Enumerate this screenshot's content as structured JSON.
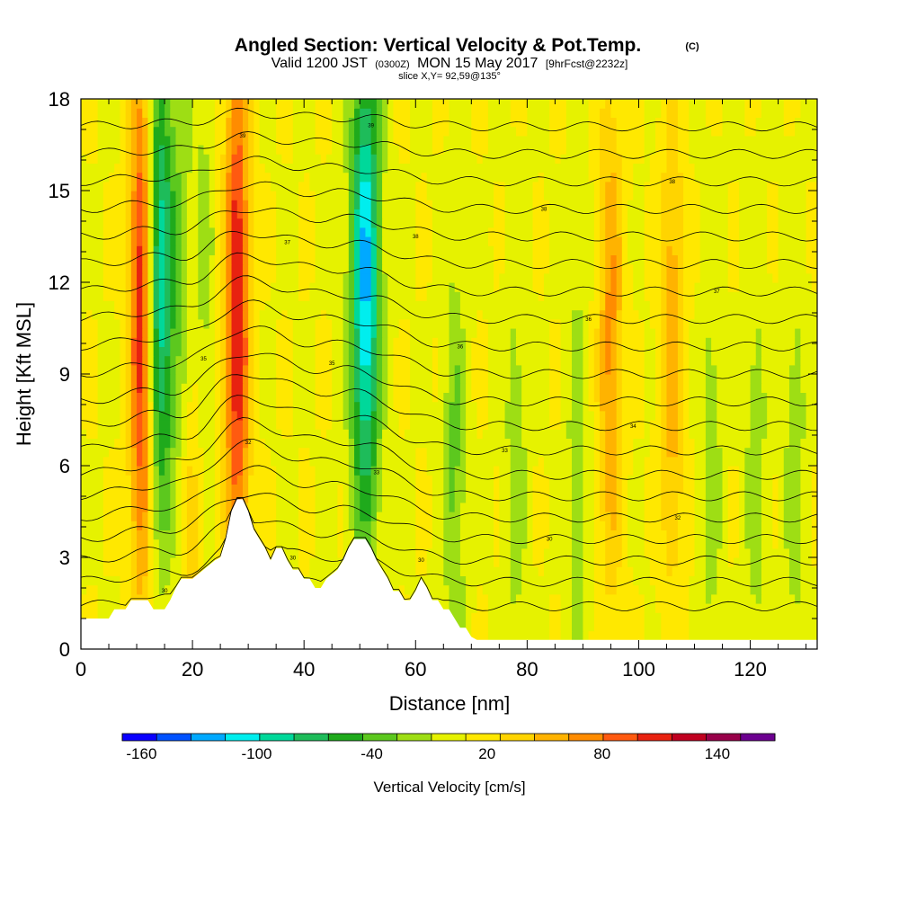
{
  "header": {
    "title": "Angled Section: Vertical Velocity & Pot.Temp.",
    "copyright": "(C)",
    "valid_prefix": "Valid 1200 JST",
    "valid_utc": "(0300Z)",
    "valid_date": "MON 15 May 2017",
    "forecast": "[9hrFcst@2232z]",
    "slice": "slice X,Y= 92,59@135°"
  },
  "chart_data": {
    "type": "heatmap",
    "title": "Angled Section: Vertical Velocity & Pot.Temp.",
    "xlabel": "Distance [nm]",
    "ylabel": "Height [Kft MSL]",
    "xlim": [
      0,
      132
    ],
    "ylim": [
      0,
      18
    ],
    "x_ticks": [
      0,
      20,
      40,
      60,
      80,
      100,
      120
    ],
    "y_ticks": [
      0,
      3,
      6,
      9,
      12,
      15,
      18
    ],
    "grid": false,
    "colorbar": {
      "label": "Vertical Velocity [cm/s]",
      "range": [
        -170,
        170
      ],
      "tick_labels": [
        -160,
        -100,
        -40,
        20,
        80,
        140
      ],
      "colors": [
        "#0a00ff",
        "#0052ff",
        "#00a9ff",
        "#00eeee",
        "#00d89a",
        "#1ebc5a",
        "#1faa1c",
        "#5cc81e",
        "#9ede14",
        "#e6f200",
        "#ffe800",
        "#ffd400",
        "#ffb300",
        "#ff8c00",
        "#ff5a10",
        "#e82210",
        "#c00020",
        "#98004a",
        "#6c0090"
      ]
    },
    "terrain_kft": [
      [
        0,
        1.0
      ],
      [
        5,
        1.0
      ],
      [
        6,
        1.3
      ],
      [
        8,
        1.3
      ],
      [
        9,
        1.6
      ],
      [
        11,
        1.6
      ],
      [
        12,
        1.6
      ],
      [
        13,
        1.3
      ],
      [
        15,
        1.3
      ],
      [
        16,
        1.6
      ],
      [
        17,
        2.0
      ],
      [
        18,
        2.3
      ],
      [
        20,
        2.3
      ],
      [
        22,
        2.6
      ],
      [
        24,
        2.9
      ],
      [
        25,
        3.0
      ],
      [
        26,
        3.6
      ],
      [
        27,
        4.5
      ],
      [
        28,
        4.9
      ],
      [
        29,
        4.9
      ],
      [
        30,
        4.5
      ],
      [
        31,
        3.9
      ],
      [
        32,
        3.6
      ],
      [
        33,
        3.3
      ],
      [
        34,
        2.9
      ],
      [
        35,
        3.3
      ],
      [
        36,
        3.3
      ],
      [
        37,
        2.9
      ],
      [
        38,
        2.6
      ],
      [
        39,
        2.6
      ],
      [
        40,
        2.3
      ],
      [
        41,
        2.3
      ],
      [
        42,
        2.0
      ],
      [
        43,
        2.0
      ],
      [
        44,
        2.3
      ],
      [
        46,
        2.6
      ],
      [
        47,
        2.9
      ],
      [
        48,
        3.3
      ],
      [
        49,
        3.6
      ],
      [
        51,
        3.6
      ],
      [
        52,
        3.3
      ],
      [
        53,
        2.9
      ],
      [
        54,
        2.6
      ],
      [
        55,
        2.3
      ],
      [
        56,
        1.9
      ],
      [
        57,
        1.9
      ],
      [
        58,
        1.6
      ],
      [
        59,
        1.6
      ],
      [
        60,
        1.9
      ],
      [
        61,
        2.3
      ],
      [
        62,
        2.0
      ],
      [
        63,
        1.6
      ],
      [
        64,
        1.6
      ],
      [
        65,
        1.3
      ],
      [
        66,
        1.3
      ],
      [
        67,
        1.0
      ],
      [
        68,
        0.7
      ],
      [
        69,
        0.7
      ],
      [
        70,
        0.4
      ],
      [
        71,
        0.3
      ],
      [
        132,
        0.3
      ]
    ],
    "updraft_bands": [
      {
        "x": 11,
        "value": 120
      },
      {
        "x": 20,
        "value": 150
      },
      {
        "x": 28,
        "value": 110
      },
      {
        "x": 95,
        "value": 60
      },
      {
        "x": 106,
        "value": 50
      }
    ],
    "downdraft_bands": [
      {
        "x": 14,
        "value": -110
      },
      {
        "x": 20,
        "value": -160
      },
      {
        "x": 51,
        "value": -130
      },
      {
        "x": 67,
        "value": -40
      },
      {
        "x": 78,
        "value": -30
      },
      {
        "x": 89,
        "value": -30
      },
      {
        "x": 113,
        "value": -30
      },
      {
        "x": 121,
        "value": -30
      },
      {
        "x": 128,
        "value": -30
      }
    ],
    "isentropes": [
      {
        "label": "30",
        "base": 1.4,
        "amp": 1.0
      },
      {
        "label": "30",
        "base": 2.2,
        "amp": 1.1
      },
      {
        "label": "30",
        "base": 2.9,
        "amp": 1.2
      },
      {
        "label": "30",
        "base": 3.6,
        "amp": 1.3
      },
      {
        "label": "32",
        "base": 4.3,
        "amp": 1.4
      },
      {
        "label": "32",
        "base": 5.0,
        "amp": 1.5
      },
      {
        "label": "33",
        "base": 5.7,
        "amp": 1.5
      },
      {
        "label": "33",
        "base": 6.5,
        "amp": 1.5
      },
      {
        "label": "34",
        "base": 7.3,
        "amp": 1.5
      },
      {
        "label": "35",
        "base": 8.1,
        "amp": 1.4
      },
      {
        "label": "35",
        "base": 9.0,
        "amp": 1.3
      },
      {
        "label": "36",
        "base": 9.9,
        "amp": 1.2
      },
      {
        "label": "36",
        "base": 10.8,
        "amp": 1.1
      },
      {
        "label": "37",
        "base": 11.7,
        "amp": 1.0
      },
      {
        "label": "37",
        "base": 12.6,
        "amp": 0.9
      },
      {
        "label": "38",
        "base": 13.5,
        "amp": 0.8
      },
      {
        "label": "38",
        "base": 14.4,
        "amp": 0.7
      },
      {
        "label": "38",
        "base": 15.3,
        "amp": 0.6
      },
      {
        "label": "39",
        "base": 16.2,
        "amp": 0.5
      },
      {
        "label": "39",
        "base": 17.1,
        "amp": 0.4
      }
    ]
  }
}
